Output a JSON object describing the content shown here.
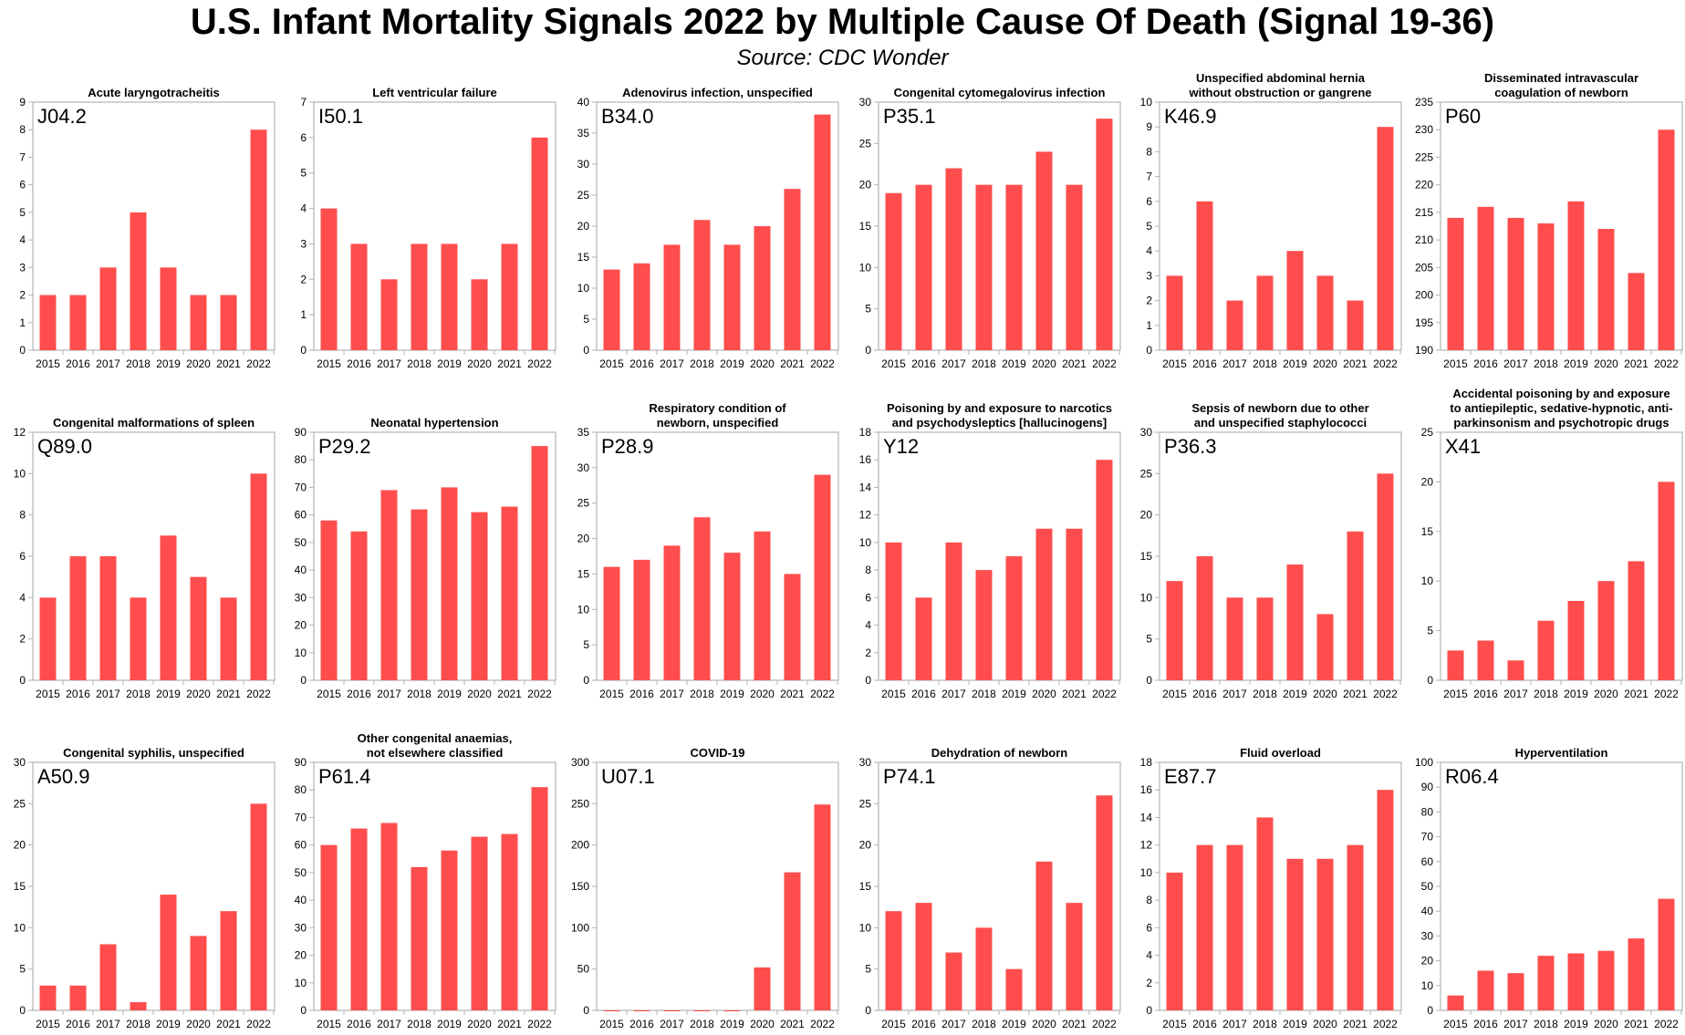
{
  "title": "U.S. Infant Mortality Signals 2022 by Multiple Cause Of Death (Signal 19-36)",
  "subtitle": "Source: CDC Wonder",
  "style": {
    "bar_color": "#ff4d4d",
    "plot_border": "#b3b3b3"
  },
  "chart_data": [
    {
      "type": "bar",
      "title": [
        "Acute laryngotracheitis"
      ],
      "code": "J04.2",
      "categories": [
        "2015",
        "2016",
        "2017",
        "2018",
        "2019",
        "2020",
        "2021",
        "2022"
      ],
      "values": [
        2,
        2,
        3,
        5,
        3,
        2,
        2,
        8
      ],
      "ylim": [
        0,
        9
      ],
      "yticks": [
        0,
        1,
        2,
        3,
        4,
        5,
        6,
        7,
        8,
        9
      ]
    },
    {
      "type": "bar",
      "title": [
        "Left ventricular failure"
      ],
      "code": "I50.1",
      "categories": [
        "2015",
        "2016",
        "2017",
        "2018",
        "2019",
        "2020",
        "2021",
        "2022"
      ],
      "values": [
        4,
        3,
        2,
        3,
        3,
        2,
        3,
        6
      ],
      "ylim": [
        0,
        7
      ],
      "yticks": [
        0,
        1,
        2,
        3,
        4,
        5,
        6,
        7
      ]
    },
    {
      "type": "bar",
      "title": [
        "Adenovirus infection, unspecified"
      ],
      "code": "B34.0",
      "categories": [
        "2015",
        "2016",
        "2017",
        "2018",
        "2019",
        "2020",
        "2021",
        "2022"
      ],
      "values": [
        13,
        14,
        17,
        21,
        17,
        20,
        26,
        38
      ],
      "ylim": [
        0,
        40
      ],
      "yticks": [
        0,
        5,
        10,
        15,
        20,
        25,
        30,
        35,
        40
      ]
    },
    {
      "type": "bar",
      "title": [
        "Congenital cytomegalovirus infection"
      ],
      "code": "P35.1",
      "categories": [
        "2015",
        "2016",
        "2017",
        "2018",
        "2019",
        "2020",
        "2021",
        "2022"
      ],
      "values": [
        19,
        20,
        22,
        20,
        20,
        24,
        20,
        28
      ],
      "ylim": [
        0,
        30
      ],
      "yticks": [
        0,
        5,
        10,
        15,
        20,
        25,
        30
      ]
    },
    {
      "type": "bar",
      "title": [
        "Unspecified abdominal hernia",
        "without obstruction or gangrene"
      ],
      "code": "K46.9",
      "categories": [
        "2015",
        "2016",
        "2017",
        "2018",
        "2019",
        "2020",
        "2021",
        "2022"
      ],
      "values": [
        3,
        6,
        2,
        3,
        4,
        3,
        2,
        9
      ],
      "ylim": [
        0,
        10
      ],
      "yticks": [
        0,
        1,
        2,
        3,
        4,
        5,
        6,
        7,
        8,
        9,
        10
      ]
    },
    {
      "type": "bar",
      "title": [
        "Disseminated intravascular",
        "coagulation of newborn"
      ],
      "code": "P60",
      "categories": [
        "2015",
        "2016",
        "2017",
        "2018",
        "2019",
        "2020",
        "2021",
        "2022"
      ],
      "values": [
        214,
        216,
        214,
        213,
        217,
        212,
        204,
        230
      ],
      "ylim": [
        190,
        235
      ],
      "yticks": [
        190,
        195,
        200,
        205,
        210,
        215,
        220,
        225,
        230,
        235
      ]
    },
    {
      "type": "bar",
      "title": [
        "Congenital malformations of spleen"
      ],
      "code": "Q89.0",
      "categories": [
        "2015",
        "2016",
        "2017",
        "2018",
        "2019",
        "2020",
        "2021",
        "2022"
      ],
      "values": [
        4,
        6,
        6,
        4,
        7,
        5,
        4,
        10
      ],
      "ylim": [
        0,
        12
      ],
      "yticks": [
        0,
        2,
        4,
        6,
        8,
        10,
        12
      ]
    },
    {
      "type": "bar",
      "title": [
        "Neonatal hypertension"
      ],
      "code": "P29.2",
      "categories": [
        "2015",
        "2016",
        "2017",
        "2018",
        "2019",
        "2020",
        "2021",
        "2022"
      ],
      "values": [
        58,
        54,
        69,
        62,
        70,
        61,
        63,
        85
      ],
      "ylim": [
        0,
        90
      ],
      "yticks": [
        0,
        10,
        20,
        30,
        40,
        50,
        60,
        70,
        80,
        90
      ]
    },
    {
      "type": "bar",
      "title": [
        "Respiratory condition of",
        "newborn, unspecified"
      ],
      "code": "P28.9",
      "categories": [
        "2015",
        "2016",
        "2017",
        "2018",
        "2019",
        "2020",
        "2021",
        "2022"
      ],
      "values": [
        16,
        17,
        19,
        23,
        18,
        21,
        15,
        29
      ],
      "ylim": [
        0,
        35
      ],
      "yticks": [
        0,
        5,
        10,
        15,
        20,
        25,
        30,
        35
      ]
    },
    {
      "type": "bar",
      "title": [
        "Poisoning by and exposure to narcotics",
        "and psychodysleptics [hallucinogens]"
      ],
      "code": "Y12",
      "categories": [
        "2015",
        "2016",
        "2017",
        "2018",
        "2019",
        "2020",
        "2021",
        "2022"
      ],
      "values": [
        10,
        6,
        10,
        8,
        9,
        11,
        11,
        16
      ],
      "ylim": [
        0,
        18
      ],
      "yticks": [
        0,
        2,
        4,
        6,
        8,
        10,
        12,
        14,
        16,
        18
      ]
    },
    {
      "type": "bar",
      "title": [
        "Sepsis of newborn due to other",
        "and unspecified staphylococci"
      ],
      "code": "P36.3",
      "categories": [
        "2015",
        "2016",
        "2017",
        "2018",
        "2019",
        "2020",
        "2021",
        "2022"
      ],
      "values": [
        12,
        15,
        10,
        10,
        14,
        8,
        18,
        25
      ],
      "ylim": [
        0,
        30
      ],
      "yticks": [
        0,
        5,
        10,
        15,
        20,
        25,
        30
      ]
    },
    {
      "type": "bar",
      "title": [
        "Accidental poisoning by and exposure",
        "to antiepileptic, sedative-hypnotic, anti-",
        "parkinsonism and psychotropic drugs"
      ],
      "code": "X41",
      "categories": [
        "2015",
        "2016",
        "2017",
        "2018",
        "2019",
        "2020",
        "2021",
        "2022"
      ],
      "values": [
        3,
        4,
        2,
        6,
        8,
        10,
        12,
        20
      ],
      "ylim": [
        0,
        25
      ],
      "yticks": [
        0,
        5,
        10,
        15,
        20,
        25
      ]
    },
    {
      "type": "bar",
      "title": [
        "Congenital syphilis, unspecified"
      ],
      "code": "A50.9",
      "categories": [
        "2015",
        "2016",
        "2017",
        "2018",
        "2019",
        "2020",
        "2021",
        "2022"
      ],
      "values": [
        3,
        3,
        8,
        1,
        14,
        9,
        12,
        25
      ],
      "ylim": [
        0,
        30
      ],
      "yticks": [
        0,
        5,
        10,
        15,
        20,
        25,
        30
      ]
    },
    {
      "type": "bar",
      "title": [
        "Other congenital anaemias,",
        "not elsewhere classified"
      ],
      "code": "P61.4",
      "categories": [
        "2015",
        "2016",
        "2017",
        "2018",
        "2019",
        "2020",
        "2021",
        "2022"
      ],
      "values": [
        60,
        66,
        68,
        52,
        58,
        63,
        64,
        81
      ],
      "ylim": [
        0,
        90
      ],
      "yticks": [
        0,
        10,
        20,
        30,
        40,
        50,
        60,
        70,
        80,
        90
      ]
    },
    {
      "type": "bar",
      "title": [
        "COVID-19"
      ],
      "code": "U07.1",
      "categories": [
        "2015",
        "2016",
        "2017",
        "2018",
        "2019",
        "2020",
        "2021",
        "2022"
      ],
      "values": [
        0,
        0,
        0,
        0,
        0,
        52,
        167,
        249
      ],
      "ylim": [
        0,
        300
      ],
      "yticks": [
        0,
        50,
        100,
        150,
        200,
        250,
        300
      ]
    },
    {
      "type": "bar",
      "title": [
        "Dehydration of newborn"
      ],
      "code": "P74.1",
      "categories": [
        "2015",
        "2016",
        "2017",
        "2018",
        "2019",
        "2020",
        "2021",
        "2022"
      ],
      "values": [
        12,
        13,
        7,
        10,
        5,
        18,
        13,
        26
      ],
      "ylim": [
        0,
        30
      ],
      "yticks": [
        0,
        5,
        10,
        15,
        20,
        25,
        30
      ]
    },
    {
      "type": "bar",
      "title": [
        "Fluid overload"
      ],
      "code": "E87.7",
      "categories": [
        "2015",
        "2016",
        "2017",
        "2018",
        "2019",
        "2020",
        "2021",
        "2022"
      ],
      "values": [
        10,
        12,
        12,
        14,
        11,
        11,
        12,
        16
      ],
      "ylim": [
        0,
        18
      ],
      "yticks": [
        0,
        2,
        4,
        6,
        8,
        10,
        12,
        14,
        16,
        18
      ]
    },
    {
      "type": "bar",
      "title": [
        "Hyperventilation"
      ],
      "code": "R06.4",
      "categories": [
        "2015",
        "2016",
        "2017",
        "2018",
        "2019",
        "2020",
        "2021",
        "2022"
      ],
      "values": [
        6,
        16,
        15,
        22,
        23,
        24,
        29,
        45
      ],
      "ylim": [
        0,
        100
      ],
      "yticks": [
        0,
        10,
        20,
        30,
        40,
        50,
        60,
        70,
        80,
        90,
        100
      ]
    }
  ]
}
